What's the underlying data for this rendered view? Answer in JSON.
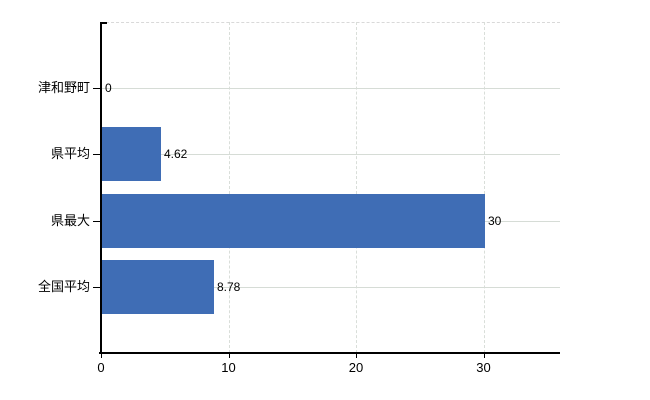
{
  "chart_data": {
    "type": "bar",
    "orientation": "horizontal",
    "title": "",
    "xlabel": "",
    "ylabel": "",
    "categories": [
      "津和野町",
      "県平均",
      "県最大",
      "全国平均"
    ],
    "values": [
      0,
      4.62,
      30,
      8.78
    ],
    "value_labels": [
      "0",
      "4.62",
      "30",
      "8.78"
    ],
    "xticks": [
      0,
      10,
      20,
      30
    ],
    "xtick_labels": [
      "0",
      "10",
      "20",
      "30"
    ],
    "xlim": [
      0,
      36
    ],
    "grid": "on",
    "legend": "none",
    "colors": {
      "bar": "#3f6db5",
      "grid_solid": "#d6dcd6",
      "grid_dashed": "#d9d9d9",
      "axis": "#000000",
      "text": "#000000",
      "background": "#ffffff"
    }
  }
}
